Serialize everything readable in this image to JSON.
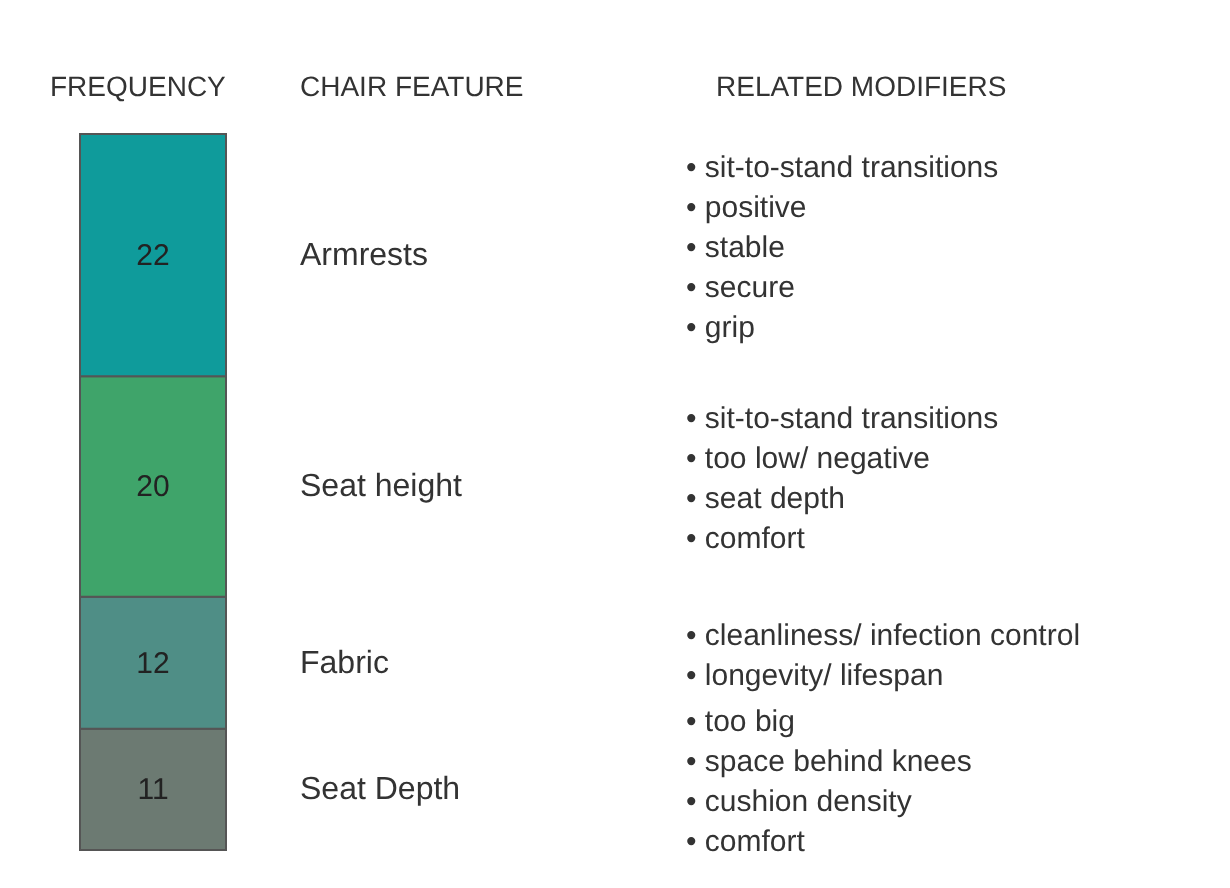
{
  "chart_data": {
    "type": "bar",
    "stacked": true,
    "data_labels": true,
    "categories": [
      null
    ],
    "series": [
      {
        "name": "Seat Depth",
        "color": "#6c7a72",
        "values": [
          11
        ]
      },
      {
        "name": "Fabric",
        "color": "#4f8e86",
        "values": [
          12
        ]
      },
      {
        "name": "Seat height",
        "color": "#3fa46a",
        "values": [
          20
        ]
      },
      {
        "name": "Armrests",
        "color": "#0f9b9b",
        "values": [
          22
        ]
      }
    ],
    "annotations": [
      "FREQUENCY",
      "CHAIR FEATURE",
      "RELATED MODIFIERS",
      "• sit-to-stand transitions\n• positive\n• stable\n• secure\n• grip",
      "• sit-to-stand transitions\n• too low/ negative\n• seat depth\n• comfort",
      "• cleanliness/ infection control\n• longevity/ lifespan",
      "• too big\n• space behind knees\n• cushion density\n• comfort"
    ]
  }
}
